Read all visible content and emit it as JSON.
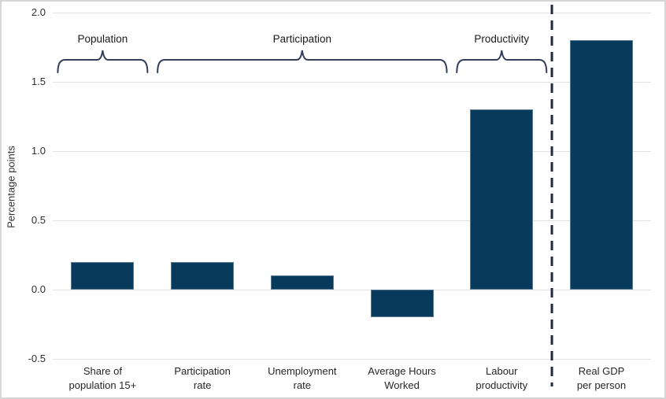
{
  "chart_data": {
    "type": "bar",
    "title": "",
    "xlabel": "",
    "ylabel": "Percentage points",
    "categories": [
      "Share of population 15+",
      "Participation rate",
      "Unemployment rate",
      "Average Hours Worked",
      "Labour productivity",
      "Real GDP per person"
    ],
    "category_lines": [
      "Share of\npopulation 15+",
      "Participation\nrate",
      "Unemployment\nrate",
      "Average Hours\nWorked",
      "Labour\nproductivity",
      "Real GDP\nper person"
    ],
    "values": [
      0.2,
      0.2,
      0.1,
      -0.2,
      1.3,
      1.8
    ],
    "ylim": [
      -0.5,
      2.0
    ],
    "yticks": [
      2.0,
      1.5,
      1.0,
      0.5,
      0.0,
      -0.5
    ],
    "ytick_labels": [
      "2.0",
      "1.5",
      "1.0",
      "0.5",
      "0.0",
      "-0.5"
    ],
    "grid": true,
    "legend": "none",
    "groups": [
      {
        "label": "Population",
        "from": 0,
        "to": 0
      },
      {
        "label": "Participation",
        "from": 1,
        "to": 3
      },
      {
        "label": "Productivity",
        "from": 4,
        "to": 4
      }
    ],
    "separator": {
      "style": "dashed",
      "between": [
        "Labour productivity",
        "Real GDP per person"
      ]
    },
    "colors": {
      "bar": "#083a5c",
      "brace": "#333e5a",
      "dashed_line": "#1f2a40",
      "gridline": "#e2e2e2",
      "text": "#262626",
      "frame_border": "#d6d6d6",
      "background": "#ffffff"
    }
  }
}
